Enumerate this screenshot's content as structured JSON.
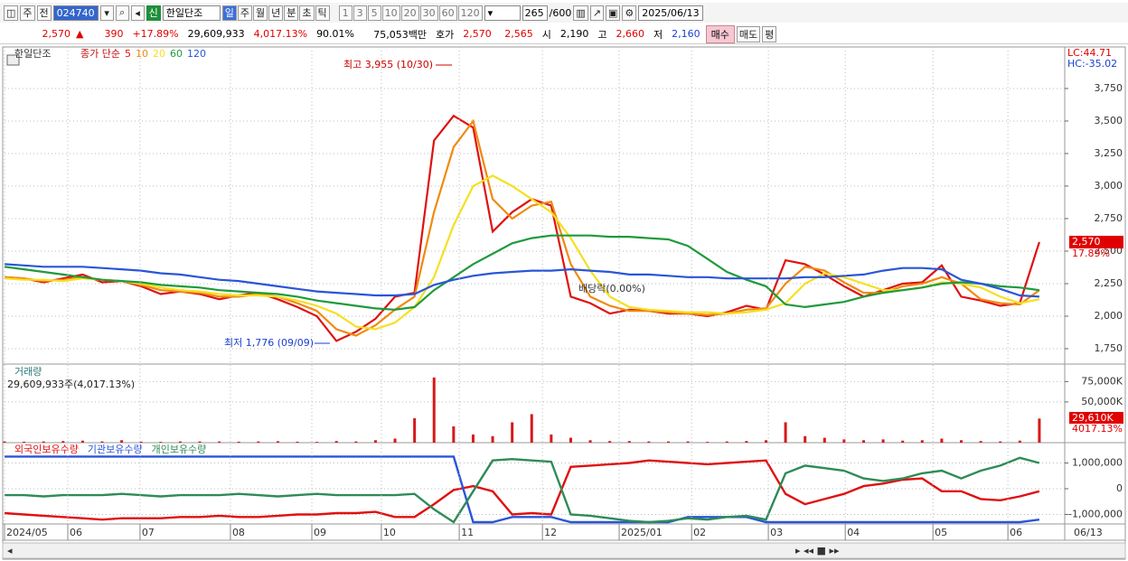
{
  "toolbar": {
    "market": "주",
    "scope": "전",
    "code": "024740",
    "badge": "신",
    "name": "한일단조",
    "periods": [
      "일",
      "주",
      "월",
      "년",
      "분",
      "초",
      "틱"
    ],
    "intervals": [
      "1",
      "3",
      "5",
      "10",
      "20",
      "30",
      "60",
      "120"
    ],
    "count": "265",
    "count_max": "/600",
    "date": "2025/06/13"
  },
  "quote": {
    "price": "2,570",
    "sign": "▲",
    "change": "390",
    "change_pct": "+17.89%",
    "volume": "29,609,933",
    "volume_pct": "4,017.13%",
    "ratio": "90.01%",
    "amount": "75,053백만",
    "ask_label": "호가",
    "ask": "2,570",
    "bid": "2,565",
    "open_label": "시",
    "open": "2,190",
    "high_label": "고",
    "high": "2,660",
    "low_label": "저",
    "low": "2,160",
    "buy": "매수",
    "sell": "매도",
    "avg": "평"
  },
  "chart_data": [
    {
      "type": "line",
      "title": "한일단조",
      "legend_prefix": "종가 단순",
      "ylim": [
        1632,
        4069
      ],
      "yticks": [
        {
          "value": 1750,
          "label": "1,750"
        },
        {
          "value": 2000,
          "label": "2,000"
        },
        {
          "value": 2250,
          "label": "2,250"
        },
        {
          "value": 2500,
          "label": "2,500"
        },
        {
          "value": 2750,
          "label": "2,750"
        },
        {
          "value": 3000,
          "label": "3,000"
        },
        {
          "value": 3250,
          "label": "3,250"
        },
        {
          "value": 3500,
          "label": "3,500"
        },
        {
          "value": 3750,
          "label": "3,750"
        }
      ],
      "xlim": [
        0,
        54.3
      ],
      "xticks": [
        {
          "value": 0,
          "label": "2024/05"
        },
        {
          "value": 3.24,
          "label": "06"
        },
        {
          "value": 6.94,
          "label": "07"
        },
        {
          "value": 11.57,
          "label": "08"
        },
        {
          "value": 15.74,
          "label": "09"
        },
        {
          "value": 19.3,
          "label": "10"
        },
        {
          "value": 23.29,
          "label": "11"
        },
        {
          "value": 27.55,
          "label": "12"
        },
        {
          "value": 31.48,
          "label": "2025/01"
        },
        {
          "value": 35.19,
          "label": "02"
        },
        {
          "value": 39.12,
          "label": "03"
        },
        {
          "value": 43.06,
          "label": "04"
        },
        {
          "value": 47.55,
          "label": "05"
        },
        {
          "value": 51.39,
          "label": "06"
        }
      ],
      "x_end_label": "06/13",
      "grid": true,
      "series": [
        {
          "name": "5",
          "color": "#e01010",
          "values": [
            2300,
            2290,
            2260,
            2290,
            2320,
            2260,
            2270,
            2230,
            2170,
            2190,
            2170,
            2130,
            2160,
            2180,
            2130,
            2070,
            2000,
            1810,
            1880,
            1980,
            2150,
            2180,
            3350,
            3540,
            3450,
            2650,
            2800,
            2900,
            2850,
            2150,
            2100,
            2020,
            2050,
            2040,
            2020,
            2020,
            2000,
            2030,
            2080,
            2050,
            2430,
            2400,
            2320,
            2230,
            2150,
            2200,
            2250,
            2260,
            2390,
            2150,
            2120,
            2080,
            2100,
            2570
          ]
        },
        {
          "name": "10",
          "color": "#f08a10",
          "values": [
            2300,
            2290,
            2270,
            2280,
            2300,
            2280,
            2270,
            2240,
            2200,
            2190,
            2180,
            2150,
            2150,
            2170,
            2150,
            2100,
            2040,
            1900,
            1850,
            1930,
            2050,
            2150,
            2800,
            3300,
            3500,
            2900,
            2750,
            2850,
            2880,
            2400,
            2150,
            2080,
            2040,
            2040,
            2030,
            2020,
            2010,
            2020,
            2050,
            2060,
            2250,
            2380,
            2350,
            2260,
            2180,
            2180,
            2230,
            2250,
            2300,
            2250,
            2130,
            2100,
            2090,
            2200
          ]
        },
        {
          "name": "20",
          "color": "#f5e020",
          "values": [
            2290,
            2280,
            2280,
            2270,
            2290,
            2280,
            2270,
            2250,
            2220,
            2200,
            2190,
            2170,
            2160,
            2160,
            2150,
            2120,
            2080,
            2020,
            1920,
            1900,
            1950,
            2070,
            2300,
            2700,
            3000,
            3080,
            3000,
            2900,
            2800,
            2600,
            2350,
            2150,
            2070,
            2050,
            2040,
            2030,
            2030,
            2020,
            2030,
            2050,
            2100,
            2250,
            2330,
            2300,
            2250,
            2200,
            2200,
            2220,
            2260,
            2250,
            2220,
            2150,
            2100,
            2130
          ]
        },
        {
          "name": "60",
          "color": "#1f9a3c",
          "values": [
            2380,
            2360,
            2340,
            2320,
            2300,
            2280,
            2270,
            2260,
            2240,
            2230,
            2220,
            2200,
            2190,
            2180,
            2170,
            2150,
            2120,
            2100,
            2080,
            2060,
            2050,
            2070,
            2200,
            2300,
            2400,
            2480,
            2560,
            2600,
            2620,
            2620,
            2620,
            2610,
            2610,
            2600,
            2590,
            2540,
            2440,
            2340,
            2280,
            2230,
            2090,
            2070,
            2090,
            2110,
            2150,
            2180,
            2200,
            2220,
            2250,
            2260,
            2250,
            2230,
            2220,
            2200
          ]
        },
        {
          "name": "120",
          "color": "#2a55d8",
          "values": [
            2400,
            2390,
            2380,
            2380,
            2380,
            2370,
            2360,
            2350,
            2330,
            2320,
            2300,
            2280,
            2270,
            2250,
            2230,
            2210,
            2190,
            2180,
            2170,
            2160,
            2160,
            2170,
            2240,
            2280,
            2310,
            2330,
            2340,
            2350,
            2350,
            2360,
            2350,
            2340,
            2320,
            2320,
            2310,
            2300,
            2300,
            2290,
            2290,
            2290,
            2290,
            2300,
            2300,
            2310,
            2320,
            2350,
            2370,
            2370,
            2360,
            2280,
            2250,
            2210,
            2160,
            2150
          ]
        }
      ],
      "annotations": [
        "최고 3,955 (10/30)",
        "최저 1,776 (09/09)",
        "배당락(0.00%)"
      ],
      "lc_label": "LC:44.71",
      "hc_label": "HC:-35.02",
      "last_label": "2,570",
      "last_pct_label": "17.89%"
    },
    {
      "type": "bar",
      "title": "거래량",
      "summary": "29,609,933주(4,017.13%)",
      "ylim": [
        0,
        94300
      ],
      "yticks": [
        {
          "value": 50000,
          "label": "50,000K"
        },
        {
          "value": 75000,
          "label": "75,000K"
        }
      ],
      "xlim": [
        0,
        54.3
      ],
      "series": [
        {
          "name": "거래량",
          "color": "#d81818",
          "values": [
            1500,
            1200,
            1500,
            2000,
            2500,
            1500,
            3000,
            1200,
            1000,
            1500,
            1500,
            1500,
            1200,
            1500,
            1800,
            1200,
            1000,
            2000,
            1500,
            3000,
            5000,
            30000,
            80000,
            20000,
            10000,
            8000,
            25000,
            35000,
            10000,
            6000,
            3000,
            2000,
            2000,
            1500,
            1500,
            1500,
            1000,
            1500,
            2000,
            3000,
            25000,
            8000,
            6000,
            4000,
            3000,
            4000,
            2500,
            3000,
            5000,
            3000,
            2000,
            1500,
            2500,
            29610
          ]
        }
      ],
      "last_label": "29,610K",
      "last_pct_label": "4017.13%"
    },
    {
      "type": "line",
      "ylim": [
        -1370000,
        1720000
      ],
      "yticks": [
        {
          "value": -1000000,
          "label": "-1,000,000"
        },
        0,
        {
          "value": 1000000,
          "label": "1,000,000"
        }
      ],
      "xlim": [
        0,
        54.3
      ],
      "series": [
        {
          "name": "외국인보유수량",
          "color": "#e01010",
          "values": [
            -950000,
            -1000000,
            -1050000,
            -1100000,
            -1150000,
            -1200000,
            -1150000,
            -1150000,
            -1150000,
            -1100000,
            -1100000,
            -1050000,
            -1100000,
            -1100000,
            -1050000,
            -1000000,
            -1000000,
            -950000,
            -950000,
            -900000,
            -1100000,
            -1100000,
            -600000,
            -50000,
            100000,
            -100000,
            -1000000,
            -950000,
            -1000000,
            850000,
            900000,
            950000,
            1000000,
            1100000,
            1050000,
            1000000,
            950000,
            1000000,
            1050000,
            1100000,
            -200000,
            -600000,
            -400000,
            -200000,
            100000,
            200000,
            350000,
            400000,
            -100000,
            -100000,
            -400000,
            -450000,
            -300000,
            -100000
          ]
        },
        {
          "name": "기관보유수량",
          "color": "#2a55d8",
          "values": [
            1250000,
            1250000,
            1250000,
            1250000,
            1250000,
            1250000,
            1250000,
            1250000,
            1250000,
            1250000,
            1250000,
            1250000,
            1250000,
            1250000,
            1250000,
            1250000,
            1250000,
            1250000,
            1250000,
            1250000,
            1250000,
            1250000,
            1250000,
            1250000,
            -1300000,
            -1300000,
            -1100000,
            -1100000,
            -1100000,
            -1300000,
            -1300000,
            -1300000,
            -1300000,
            -1300000,
            -1300000,
            -1100000,
            -1100000,
            -1100000,
            -1100000,
            -1300000,
            -1300000,
            -1300000,
            -1300000,
            -1300000,
            -1300000,
            -1300000,
            -1300000,
            -1300000,
            -1300000,
            -1300000,
            -1300000,
            -1300000,
            -1300000,
            -1200000
          ]
        },
        {
          "name": "개인보유수량",
          "color": "#2e8b57",
          "values": [
            -250000,
            -250000,
            -300000,
            -250000,
            -250000,
            -250000,
            -200000,
            -250000,
            -300000,
            -250000,
            -250000,
            -250000,
            -200000,
            -250000,
            -300000,
            -250000,
            -200000,
            -250000,
            -250000,
            -250000,
            -250000,
            -200000,
            -800000,
            -1300000,
            -100000,
            1100000,
            1150000,
            1100000,
            1050000,
            -1000000,
            -1050000,
            -1150000,
            -1250000,
            -1300000,
            -1250000,
            -1150000,
            -1200000,
            -1100000,
            -1050000,
            -1200000,
            600000,
            900000,
            800000,
            700000,
            400000,
            300000,
            400000,
            600000,
            700000,
            400000,
            700000,
            900000,
            1200000,
            1000000
          ]
        }
      ]
    }
  ]
}
